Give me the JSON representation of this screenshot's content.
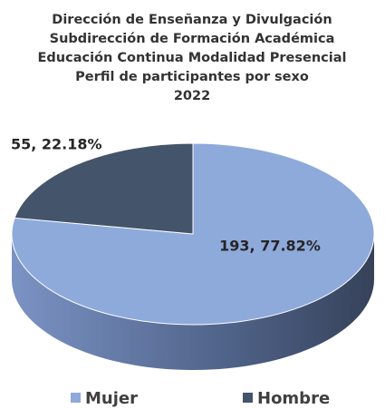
{
  "chart_data": {
    "type": "pie",
    "title": [
      "Dirección de Enseñanza y Divulgación",
      "Subdirección de Formación Académica",
      "Educación Continua Modalidad Presencial",
      "Perfil de participantes por sexo",
      "2022"
    ],
    "categories": [
      "Mujer",
      "Hombre"
    ],
    "values": [
      193,
      55
    ],
    "value_labels": [
      "193, 77.82%",
      "55, 22.18%"
    ],
    "colors": [
      "#8eaadb",
      "#44546a"
    ],
    "legend": "bottom"
  }
}
